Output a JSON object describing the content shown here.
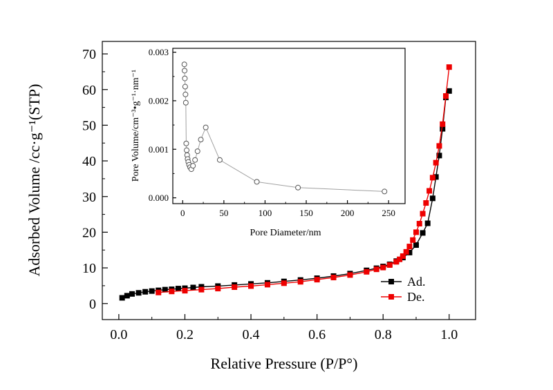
{
  "figure": {
    "type": "scientific-plot",
    "background": "#ffffff",
    "description": "Nitrogen adsorption-desorption isotherm with pore size distribution inset"
  },
  "chart_data": [
    {
      "id": "main",
      "type": "line",
      "title": "",
      "xlabel": "Relative Pressure (P/P°)",
      "ylabel": "Adsorbed Volume /cc·g⁻¹(STP)",
      "xlim": [
        -0.05,
        1.08
      ],
      "ylim": [
        -4.5,
        73.5
      ],
      "xticks": [
        0,
        0.2,
        0.4,
        0.6,
        0.8,
        1.0
      ],
      "xtick_labels": [
        "0.0",
        "0.2",
        "0.4",
        "0.6",
        "0.8",
        "1.0"
      ],
      "yticks": [
        0,
        10,
        20,
        30,
        40,
        50,
        60,
        70
      ],
      "ytick_labels": [
        "0",
        "10",
        "20",
        "30",
        "40",
        "50",
        "60",
        "70"
      ],
      "x_minor": [
        0.1,
        0.3,
        0.5,
        0.7,
        0.9
      ],
      "y_minor": [
        5,
        15,
        25,
        35,
        45,
        55,
        65
      ],
      "grid": false,
      "legend": {
        "position": "inside-lower-right",
        "entries": [
          {
            "label": "Ad.",
            "color": "#000000",
            "marker": "square"
          },
          {
            "label": "De.",
            "color": "#ee0000",
            "marker": "square"
          }
        ]
      },
      "series": [
        {
          "name": "Ad.",
          "color": "#000000",
          "marker": "square",
          "x": [
            0.01,
            0.025,
            0.04,
            0.06,
            0.08,
            0.1,
            0.12,
            0.14,
            0.16,
            0.18,
            0.2,
            0.225,
            0.25,
            0.3,
            0.35,
            0.4,
            0.45,
            0.5,
            0.55,
            0.6,
            0.65,
            0.7,
            0.75,
            0.78,
            0.8,
            0.82,
            0.84,
            0.86,
            0.88,
            0.9,
            0.92,
            0.935,
            0.95,
            0.96,
            0.97,
            0.98,
            0.99,
            1.0
          ],
          "y": [
            1.6,
            2.2,
            2.7,
            3.0,
            3.3,
            3.5,
            3.7,
            3.9,
            4.0,
            4.2,
            4.3,
            4.5,
            4.7,
            4.9,
            5.2,
            5.5,
            5.8,
            6.2,
            6.6,
            7.1,
            7.7,
            8.4,
            9.3,
            9.9,
            10.4,
            11.0,
            11.9,
            12.9,
            14.3,
            16.4,
            19.8,
            22.5,
            29.5,
            35.5,
            41.5,
            49.0,
            57.8,
            59.6
          ]
        },
        {
          "name": "De.",
          "color": "#ee0000",
          "marker": "square",
          "x": [
            1.0,
            0.99,
            0.98,
            0.97,
            0.96,
            0.95,
            0.94,
            0.93,
            0.92,
            0.91,
            0.9,
            0.89,
            0.88,
            0.87,
            0.86,
            0.85,
            0.84,
            0.82,
            0.8,
            0.78,
            0.75,
            0.7,
            0.65,
            0.6,
            0.55,
            0.5,
            0.45,
            0.4,
            0.35,
            0.3,
            0.25,
            0.2,
            0.16,
            0.12
          ],
          "y": [
            66.3,
            58.2,
            50.3,
            44.2,
            39.5,
            35.3,
            31.6,
            28.2,
            25.2,
            22.4,
            20.0,
            17.8,
            16.0,
            14.5,
            13.3,
            12.4,
            11.7,
            10.8,
            10.1,
            9.6,
            8.9,
            8.0,
            7.3,
            6.7,
            6.1,
            5.7,
            5.3,
            4.9,
            4.6,
            4.2,
            3.9,
            3.6,
            3.4,
            3.1
          ]
        }
      ]
    },
    {
      "id": "inset",
      "type": "line",
      "title": "",
      "xlabel": "Pore Diameter/nm",
      "ylabel": "Pore Volume/cm⁻³•g⁻¹·nm⁻¹",
      "xlim": [
        -12,
        270
      ],
      "ylim": [
        -0.00012,
        0.00308
      ],
      "xticks": [
        0,
        50,
        100,
        150,
        200,
        250
      ],
      "xtick_labels": [
        "0",
        "50",
        "100",
        "150",
        "200",
        "250"
      ],
      "yticks": [
        0,
        0.001,
        0.002,
        0.003
      ],
      "ytick_labels": [
        "0.000",
        "0.001",
        "0.002",
        "0.003"
      ],
      "x_minor": [
        25,
        75,
        125,
        175,
        225
      ],
      "y_minor": [
        0.0005,
        0.0015,
        0.0025
      ],
      "grid": false,
      "series": [
        {
          "name": "pore-size-distribution",
          "color": "#555555",
          "line_color": "#a0a0a0",
          "marker": "circle-open",
          "x": [
            2.0,
            2.3,
            2.6,
            3.0,
            3.4,
            3.8,
            4.3,
            4.8,
            5.4,
            6.0,
            6.8,
            7.8,
            9.0,
            10.5,
            12.5,
            15.0,
            18.0,
            22.0,
            28.0,
            45.0,
            90.0,
            140.0,
            245.0
          ],
          "y": [
            0.00275,
            0.00262,
            0.00246,
            0.00229,
            0.00213,
            0.00196,
            0.00112,
            0.00098,
            0.00088,
            0.0008,
            0.00074,
            0.00068,
            0.00063,
            0.00059,
            0.00066,
            0.00078,
            0.00096,
            0.0012,
            0.00145,
            0.00078,
            0.00033,
            0.00021,
            0.00013
          ]
        }
      ]
    }
  ]
}
